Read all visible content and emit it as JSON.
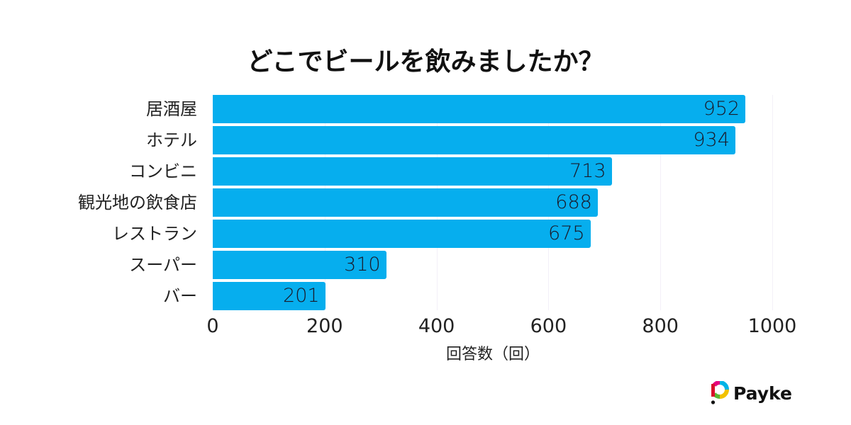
{
  "title": "どこでビールを飲みましたか？",
  "chart_data": {
    "type": "bar",
    "orientation": "horizontal",
    "title": "どこでビールを飲みましたか？",
    "categories": [
      "居酒屋",
      "ホテル",
      "コンビニ",
      "観光地の飲食店",
      "レストラン",
      "スーパー",
      "バー"
    ],
    "values": [
      952,
      934,
      713,
      688,
      675,
      310,
      201
    ],
    "xlabel": "回答数（回）",
    "ylabel": "",
    "xlim": [
      0,
      1000
    ],
    "xticks": [
      "0",
      "200",
      "400",
      "600",
      "800",
      "1000"
    ],
    "grid": true,
    "legend": null,
    "bar_color": "#06aeee"
  },
  "rows": [
    {
      "label": "居酒屋",
      "value": "952"
    },
    {
      "label": "ホテル",
      "value": "934"
    },
    {
      "label": "コンビニ",
      "value": "713"
    },
    {
      "label": "観光地の飲食店",
      "value": "688"
    },
    {
      "label": "レストラン",
      "value": "675"
    },
    {
      "label": "スーパー",
      "value": "310"
    },
    {
      "label": "バー",
      "value": "201"
    }
  ],
  "axis": {
    "ticks": [
      "0",
      "200",
      "400",
      "600",
      "800",
      "1000"
    ],
    "xlabel": "回答数（回）"
  },
  "brand": {
    "name": "Payke",
    "icon": "payke-logo-icon"
  }
}
